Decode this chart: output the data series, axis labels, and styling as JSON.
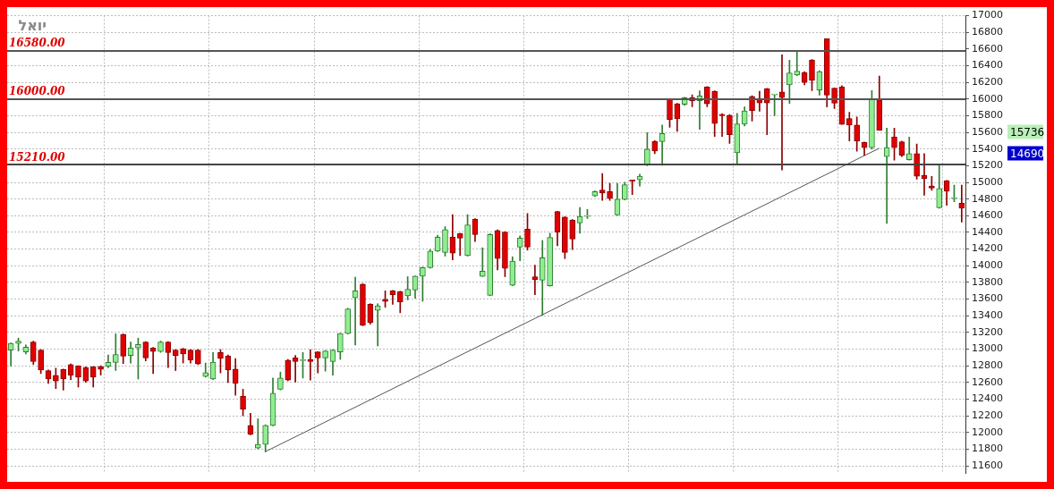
{
  "chart_data": {
    "type": "candlestick",
    "title": "יואל",
    "categories": [
      null,
      null,
      null,
      null,
      null,
      null,
      null,
      null,
      null,
      null,
      null,
      null,
      null,
      null,
      null,
      null,
      null,
      null,
      null,
      null,
      null,
      null,
      null,
      null,
      null,
      null,
      null,
      null,
      null,
      null,
      null,
      null,
      null,
      null,
      null,
      null,
      null,
      null,
      null,
      null,
      null,
      null,
      null,
      null,
      null,
      null,
      null,
      null,
      null,
      null,
      null,
      null,
      null,
      null,
      null,
      null,
      null,
      null,
      null,
      null,
      null,
      null,
      null,
      null,
      null,
      null,
      null,
      null,
      null,
      null,
      null,
      null,
      null,
      null,
      null,
      null,
      null,
      null,
      null,
      null,
      null,
      null,
      null,
      null,
      null,
      null,
      null,
      null,
      null,
      null,
      null,
      null,
      null,
      null,
      null,
      null,
      null,
      null,
      null,
      null,
      null,
      null,
      null,
      null,
      null,
      null,
      null,
      null,
      null,
      null,
      null,
      null,
      null,
      null,
      null,
      null,
      null,
      null,
      null,
      null,
      null,
      null,
      null,
      null,
      null,
      null,
      null,
      null
    ],
    "ohlc": [
      [
        12988,
        13075,
        12797,
        13068
      ],
      [
        13068,
        13132,
        12977,
        13096
      ],
      [
        12966,
        13049,
        12941,
        13024
      ],
      [
        13085,
        13096,
        12815,
        12851
      ],
      [
        12988,
        12995,
        12706,
        12750
      ],
      [
        12742,
        12750,
        12587,
        12641
      ],
      [
        12685,
        12771,
        12526,
        12616
      ],
      [
        12757,
        12760,
        12508,
        12641
      ],
      [
        12815,
        12822,
        12634,
        12688
      ],
      [
        12797,
        12800,
        12544,
        12663
      ],
      [
        12779,
        12786,
        12600,
        12616
      ],
      [
        12786,
        12790,
        12544,
        12663
      ],
      [
        12793,
        12800,
        12688,
        12757
      ],
      [
        12793,
        12930,
        12775,
        12840
      ],
      [
        12840,
        13183,
        12743,
        12934
      ],
      [
        13175,
        13183,
        12826,
        12916
      ],
      [
        12923,
        13085,
        12833,
        13013
      ],
      [
        13013,
        13132,
        12641,
        13056
      ],
      [
        13085,
        13090,
        12858,
        12894
      ],
      [
        13013,
        13020,
        12706,
        12970
      ],
      [
        12970,
        13096,
        12960,
        13085
      ],
      [
        13085,
        13090,
        12779,
        12959
      ],
      [
        12988,
        12995,
        12742,
        12923
      ],
      [
        13002,
        13010,
        12833,
        12941
      ],
      [
        12988,
        12995,
        12833,
        12869
      ],
      [
        12988,
        12995,
        12815,
        12822
      ],
      [
        12670,
        12833,
        12663,
        12717
      ],
      [
        12641,
        12959,
        12634,
        12844
      ],
      [
        12959,
        12995,
        12714,
        12887
      ],
      [
        12916,
        12930,
        12598,
        12750
      ],
      [
        12761,
        12887,
        12446,
        12591
      ],
      [
        12435,
        12518,
        12200,
        12280
      ],
      [
        12085,
        12229,
        11970,
        11977
      ],
      [
        11814,
        12164,
        11803,
        11857
      ],
      [
        11857,
        12092,
        11767,
        12085
      ],
      [
        12085,
        12652,
        12078,
        12471
      ],
      [
        12518,
        12724,
        12510,
        12652
      ],
      [
        12869,
        12876,
        12620,
        12627
      ],
      [
        12894,
        12923,
        12605,
        12851
      ],
      [
        12862,
        12959,
        12652,
        12869
      ],
      [
        12876,
        12995,
        12627,
        12851
      ],
      [
        12966,
        12970,
        12714,
        12894
      ],
      [
        12894,
        12984,
        12735,
        12977
      ],
      [
        12851,
        12995,
        12688,
        12988
      ],
      [
        12966,
        13190,
        12876,
        13186
      ],
      [
        13186,
        13490,
        13180,
        13483
      ],
      [
        13616,
        13862,
        13049,
        13699
      ],
      [
        13779,
        13786,
        13280,
        13284
      ],
      [
        13537,
        13545,
        13299,
        13320
      ],
      [
        13465,
        13544,
        13038,
        13519
      ],
      [
        13598,
        13699,
        13501,
        13573
      ],
      [
        13699,
        13705,
        13537,
        13652
      ],
      [
        13688,
        13695,
        13436,
        13566
      ],
      [
        13638,
        13869,
        13591,
        13717
      ],
      [
        13710,
        13880,
        13609,
        13876
      ],
      [
        13876,
        13985,
        13573,
        13977
      ],
      [
        13977,
        14194,
        13970,
        14176
      ],
      [
        14176,
        14368,
        14170,
        14342
      ],
      [
        14158,
        14469,
        14115,
        14433
      ],
      [
        14342,
        14613,
        14072,
        14151
      ],
      [
        14386,
        14390,
        14122,
        14332
      ],
      [
        14122,
        14613,
        14115,
        14491
      ],
      [
        14560,
        14565,
        14292,
        14375
      ],
      [
        13873,
        14216,
        13870,
        13934
      ],
      [
        13645,
        14386,
        13640,
        14375
      ],
      [
        14422,
        14430,
        13949,
        14086
      ],
      [
        14404,
        14410,
        13869,
        13970
      ],
      [
        13764,
        14108,
        13760,
        14057
      ],
      [
        14223,
        14360,
        14061,
        14332
      ],
      [
        14440,
        14628,
        14187,
        14223
      ],
      [
        13869,
        14007,
        13652,
        13833
      ],
      [
        13826,
        14303,
        13406,
        14097
      ],
      [
        13761,
        14390,
        13755,
        14339
      ],
      [
        14650,
        14655,
        14241,
        14404
      ],
      [
        14585,
        14590,
        14086,
        14158
      ],
      [
        14549,
        14555,
        14194,
        14321
      ],
      [
        14513,
        14700,
        14390,
        14592
      ],
      [
        14592,
        14675,
        14567,
        14592
      ],
      [
        14838,
        14899,
        14830,
        14891
      ],
      [
        14909,
        15108,
        14783,
        14873
      ],
      [
        14891,
        14988,
        14783,
        14808
      ],
      [
        14610,
        14988,
        14605,
        14798
      ],
      [
        14794,
        15003,
        14790,
        14974
      ],
      [
        15028,
        15030,
        14855,
        15014
      ],
      [
        15032,
        15100,
        14956,
        15075
      ],
      [
        15208,
        15597,
        15200,
        15399
      ],
      [
        15494,
        15500,
        15345,
        15378
      ],
      [
        15490,
        15688,
        15205,
        15587
      ],
      [
        15998,
        16005,
        15662,
        15756
      ],
      [
        15943,
        15950,
        15612,
        15763
      ],
      [
        15936,
        16022,
        15925,
        16015
      ],
      [
        16015,
        16051,
        15907,
        15979
      ],
      [
        15979,
        16098,
        15638,
        16037
      ],
      [
        16145,
        16150,
        15907,
        15943
      ],
      [
        16094,
        16100,
        15552,
        15708
      ],
      [
        15818,
        15825,
        15552,
        15800
      ],
      [
        15807,
        15815,
        15468,
        15573
      ],
      [
        15356,
        15829,
        15230,
        15702
      ],
      [
        15699,
        15907,
        15676,
        15858
      ],
      [
        16033,
        16040,
        15735,
        15861
      ],
      [
        16008,
        16094,
        15854,
        15954
      ],
      [
        16123,
        16130,
        15573,
        15954
      ],
      [
        16051,
        16051,
        15800,
        16051
      ],
      [
        16087,
        16532,
        15150,
        16019
      ],
      [
        16170,
        16466,
        15947,
        16314
      ],
      [
        16289,
        16571,
        16280,
        16336
      ],
      [
        16318,
        16330,
        16170,
        16199
      ],
      [
        16470,
        16475,
        16102,
        16228
      ],
      [
        16109,
        16340,
        16048,
        16329
      ],
      [
        16723,
        16723,
        15904,
        16048
      ],
      [
        16131,
        16135,
        15886,
        15951
      ],
      [
        16145,
        16160,
        15695,
        15695
      ],
      [
        15767,
        15843,
        15497,
        15688
      ],
      [
        15688,
        15785,
        15374,
        15497
      ],
      [
        15479,
        15486,
        15327,
        15417
      ],
      [
        15417,
        16102,
        15400,
        15994
      ],
      [
        15994,
        16275,
        15626,
        15626
      ],
      [
        15309,
        15652,
        14509,
        15417
      ],
      [
        15543,
        15652,
        15266,
        15417
      ],
      [
        15489,
        15495,
        15309,
        15327
      ],
      [
        15273,
        15543,
        15266,
        15345
      ],
      [
        15345,
        15460,
        15039,
        15075
      ],
      [
        15082,
        15345,
        14845,
        15046
      ],
      [
        14956,
        15071,
        14906,
        14931
      ],
      [
        14697,
        15201,
        14690,
        14928
      ],
      [
        15021,
        15025,
        14726,
        14895
      ],
      [
        14805,
        14967,
        14769,
        14805
      ],
      [
        14751,
        14967,
        14523,
        14690
      ]
    ],
    "series": [
      {
        "type": "line",
        "color": "#555555",
        "values": [
          null,
          null,
          null,
          null,
          null,
          null,
          null,
          null,
          null,
          null,
          null,
          null,
          null,
          null,
          null,
          null,
          null,
          null,
          null,
          null,
          null,
          null,
          null,
          null,
          null,
          null,
          null,
          null,
          null,
          null,
          null,
          null,
          null,
          null,
          11770,
          null,
          null,
          null,
          null,
          null,
          null,
          null,
          null,
          null,
          null,
          null,
          null,
          null,
          null,
          null,
          null,
          null,
          null,
          null,
          null,
          null,
          null,
          null,
          null,
          null,
          null,
          null,
          null,
          null,
          null,
          null,
          null,
          null,
          null,
          null,
          null,
          null,
          null,
          null,
          null,
          null,
          null,
          null,
          null,
          null,
          null,
          null,
          null,
          null,
          null,
          null,
          null,
          null,
          null,
          null,
          null,
          null,
          null,
          null,
          null,
          null,
          null,
          null,
          null,
          null,
          null,
          null,
          null,
          null,
          null,
          null,
          null,
          null,
          null,
          null,
          null,
          null,
          null,
          null,
          null,
          null,
          15410,
          null,
          null,
          null,
          null,
          null,
          null,
          null,
          null,
          null,
          null,
          null
        ]
      }
    ],
    "ylim": [
      11510,
      17000
    ],
    "yticks": [
      11600,
      11800,
      12000,
      12200,
      12400,
      12600,
      12800,
      13000,
      13200,
      13400,
      13600,
      13800,
      14000,
      14200,
      14400,
      14600,
      14800,
      15000,
      15200,
      15400,
      15600,
      15800,
      16000,
      16200,
      16400,
      16600,
      16800,
      17000
    ],
    "ref_lines": [
      {
        "axis": "y",
        "value": 16580,
        "label": "16580.00",
        "color": "#555555"
      },
      {
        "axis": "y",
        "value": 16000,
        "label": "16000.00",
        "color": "#555555"
      },
      {
        "axis": "y",
        "value": 15210,
        "label": "15210.00",
        "color": "#444444"
      }
    ],
    "annotations": [
      "15736",
      "14690"
    ],
    "grid": true,
    "tick_labels": "y"
  }
}
